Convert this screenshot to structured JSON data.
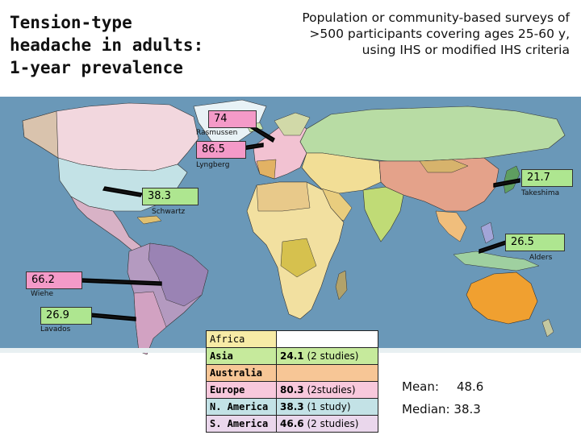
{
  "title": "Tension-type headache in adults: 1-year prevalence",
  "title_lines": [
    "Tension-type",
    "headache in adults:",
    "1-year prevalence"
  ],
  "subtitle_lines": [
    "Population or community-based surveys of",
    ">500 participants covering ages 25-60 y,",
    "using IHS or modified IHS criteria"
  ],
  "studies": [
    {
      "value": "74",
      "author": "Rasmussen",
      "color": "pink"
    },
    {
      "value": "86.5",
      "author": "Lyngberg",
      "color": "pink"
    },
    {
      "value": "21.7",
      "author": "Takeshima",
      "color": "green"
    },
    {
      "value": "38.3",
      "author": "Schwartz",
      "color": "green"
    },
    {
      "value": "26.5",
      "author": "Alders",
      "color": "green"
    },
    {
      "value": "66.2",
      "author": "Wiehe",
      "color": "pink"
    },
    {
      "value": "26.9",
      "author": "Lavados",
      "color": "green"
    }
  ],
  "regions": [
    {
      "name": "Africa",
      "value": "",
      "detail": "",
      "color": "#f7eba6"
    },
    {
      "name": "Asia",
      "value": "24.1",
      "detail": "(2 studies)",
      "color": "#c6ea9c"
    },
    {
      "name": "Australia",
      "value": "",
      "detail": "",
      "color": "#f7c696"
    },
    {
      "name": "Europe",
      "value": "80.3",
      "detail": "(2studies)",
      "color": "#f8c8dc"
    },
    {
      "name": "N. America",
      "value": "38.3",
      "detail": "(1 study)",
      "color": "#c3e2e6"
    },
    {
      "name": "S. America",
      "value": "46.6",
      "detail": "(2 studies)",
      "color": "#ead7ec"
    }
  ],
  "stats": {
    "mean_label": "Mean:",
    "mean_value": "48.6",
    "median_label": "Median:",
    "median_value": "38.3"
  },
  "colors": {
    "ocean": "#6a98b8",
    "pink": "#f49ac8",
    "green": "#aee690"
  }
}
